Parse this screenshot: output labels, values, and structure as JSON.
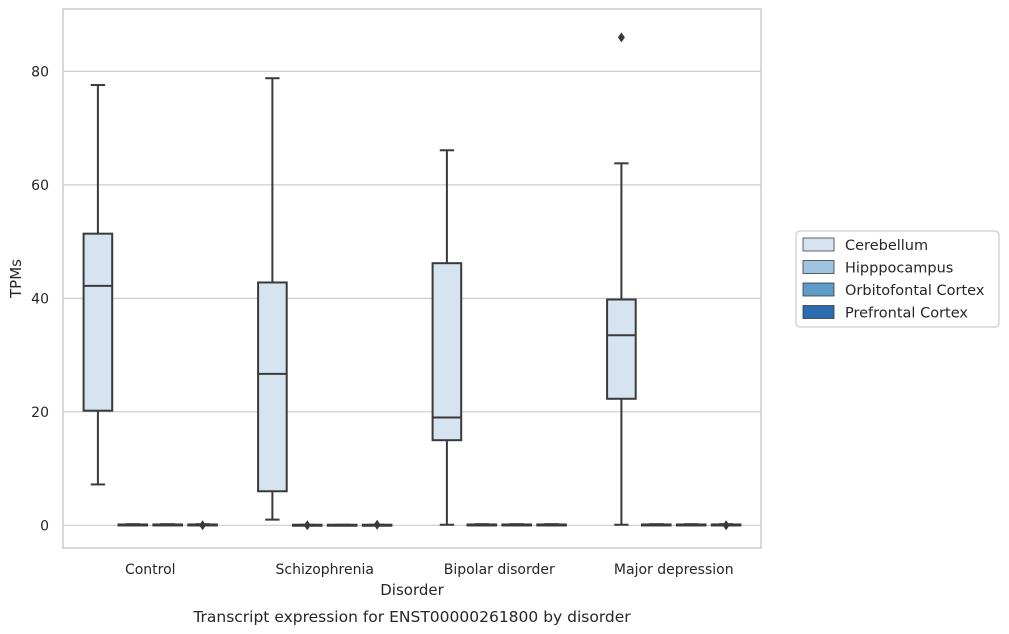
{
  "chart_data": {
    "type": "box",
    "title": "",
    "caption": "Transcript expression for ENST00000261800 by disorder",
    "xlabel": "Disorder",
    "ylabel": "TPMs",
    "ylim": [
      -4,
      91
    ],
    "yticks": [
      0,
      20,
      40,
      60,
      80
    ],
    "grid": "horizontal",
    "legend_position": "right",
    "categories": [
      "Control",
      "Schizophrenia",
      "Bipolar disorder",
      "Major depression"
    ],
    "series": [
      {
        "name": "Cerebellum",
        "color": "#d6e3f1",
        "boxes": [
          {
            "whisker_low": 7.2,
            "q1": 20.2,
            "median": 42.2,
            "q3": 51.4,
            "whisker_high": 77.6,
            "outliers": []
          },
          {
            "whisker_low": 1.0,
            "q1": 6.0,
            "median": 26.7,
            "q3": 42.8,
            "whisker_high": 78.8,
            "outliers": []
          },
          {
            "whisker_low": 0.1,
            "q1": 15.0,
            "median": 19.0,
            "q3": 46.2,
            "whisker_high": 66.1,
            "outliers": []
          },
          {
            "whisker_low": 0.1,
            "q1": 22.3,
            "median": 33.5,
            "q3": 39.8,
            "whisker_high": 63.8,
            "outliers": [
              86.0
            ]
          }
        ]
      },
      {
        "name": "Hipppocampus",
        "color": "#9dc3df",
        "boxes": [
          {
            "whisker_low": 0.0,
            "q1": 0.0,
            "median": 0.1,
            "q3": 0.15,
            "whisker_high": 0.2,
            "outliers": []
          },
          {
            "whisker_low": 0.0,
            "q1": 0.0,
            "median": 0.05,
            "q3": 0.1,
            "whisker_high": 0.1,
            "outliers": [
              0.0
            ]
          },
          {
            "whisker_low": 0.0,
            "q1": 0.0,
            "median": 0.1,
            "q3": 0.15,
            "whisker_high": 0.2,
            "outliers": []
          },
          {
            "whisker_low": 0.0,
            "q1": 0.0,
            "median": 0.1,
            "q3": 0.15,
            "whisker_high": 0.2,
            "outliers": []
          }
        ]
      },
      {
        "name": "Orbitofontal Cortex",
        "color": "#5d9bc8",
        "boxes": [
          {
            "whisker_low": 0.0,
            "q1": 0.0,
            "median": 0.1,
            "q3": 0.15,
            "whisker_high": 0.2,
            "outliers": []
          },
          {
            "whisker_low": 0.0,
            "q1": 0.0,
            "median": 0.05,
            "q3": 0.1,
            "whisker_high": 0.1,
            "outliers": []
          },
          {
            "whisker_low": 0.0,
            "q1": 0.0,
            "median": 0.1,
            "q3": 0.15,
            "whisker_high": 0.2,
            "outliers": []
          },
          {
            "whisker_low": 0.0,
            "q1": 0.0,
            "median": 0.1,
            "q3": 0.15,
            "whisker_high": 0.2,
            "outliers": []
          }
        ]
      },
      {
        "name": "Prefrontal Cortex",
        "color": "#2b6cb0",
        "boxes": [
          {
            "whisker_low": 0.0,
            "q1": 0.0,
            "median": 0.1,
            "q3": 0.15,
            "whisker_high": 0.2,
            "outliers": [
              0.0
            ]
          },
          {
            "whisker_low": 0.0,
            "q1": 0.0,
            "median": 0.05,
            "q3": 0.1,
            "whisker_high": 0.1,
            "outliers": [
              0.1
            ]
          },
          {
            "whisker_low": 0.0,
            "q1": 0.0,
            "median": 0.1,
            "q3": 0.15,
            "whisker_high": 0.2,
            "outliers": []
          },
          {
            "whisker_low": 0.0,
            "q1": 0.0,
            "median": 0.1,
            "q3": 0.15,
            "whisker_high": 0.2,
            "outliers": [
              0.0
            ]
          }
        ]
      }
    ]
  }
}
